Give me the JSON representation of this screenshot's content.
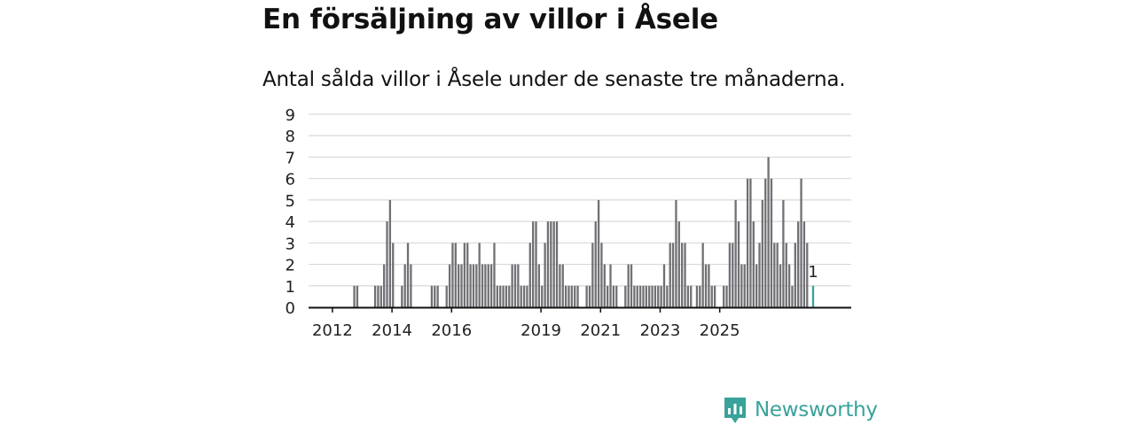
{
  "header": {
    "title": "En försäljning av villor i Åsele",
    "subtitle": "Antal sålda villor i Åsele under de senaste tre månaderna."
  },
  "brand": {
    "name": "Newsworthy"
  },
  "colors": {
    "bar": "#707075",
    "highlight": "#39a29a",
    "grid": "#d9d9d9",
    "axis": "#111111"
  },
  "chart_data": {
    "type": "bar",
    "title": "En försäljning av villor i Åsele",
    "subtitle": "Antal sålda villor i Åsele under de senaste tre månaderna.",
    "xlabel": "",
    "ylabel": "",
    "ylim": [
      0,
      9
    ],
    "yticks": [
      0,
      1,
      2,
      3,
      4,
      5,
      6,
      7,
      8,
      9
    ],
    "grid": true,
    "x_start": "2011-12",
    "x_tick_labels": [
      {
        "label": "2012",
        "month_index": 8
      },
      {
        "label": "2014",
        "month_index": 28
      },
      {
        "label": "2016",
        "month_index": 48
      },
      {
        "label": "2019",
        "month_index": 78
      },
      {
        "label": "2021",
        "month_index": 98
      },
      {
        "label": "2023",
        "month_index": 118
      },
      {
        "label": "2025",
        "month_index": 138
      }
    ],
    "values": [
      0,
      0,
      0,
      0,
      0,
      0,
      0,
      0,
      0,
      0,
      0,
      0,
      0,
      0,
      0,
      1,
      1,
      0,
      0,
      0,
      0,
      0,
      1,
      1,
      1,
      2,
      4,
      5,
      3,
      0,
      0,
      1,
      2,
      3,
      2,
      0,
      0,
      0,
      0,
      0,
      0,
      1,
      1,
      1,
      0,
      0,
      1,
      2,
      3,
      3,
      2,
      2,
      3,
      3,
      2,
      2,
      2,
      3,
      2,
      2,
      2,
      2,
      3,
      1,
      1,
      1,
      1,
      1,
      2,
      2,
      2,
      1,
      1,
      1,
      3,
      4,
      4,
      2,
      1,
      3,
      4,
      4,
      4,
      4,
      2,
      2,
      1,
      1,
      1,
      1,
      1,
      0,
      0,
      1,
      1,
      3,
      4,
      5,
      3,
      2,
      1,
      2,
      1,
      1,
      0,
      0,
      1,
      2,
      2,
      1,
      1,
      1,
      1,
      1,
      1,
      1,
      1,
      1,
      1,
      2,
      1,
      3,
      3,
      5,
      4,
      3,
      3,
      1,
      1,
      0,
      1,
      1,
      3,
      2,
      2,
      1,
      1,
      0,
      0,
      1,
      1,
      3,
      3,
      5,
      4,
      2,
      2,
      6,
      6,
      4,
      2,
      3,
      5,
      6,
      7,
      6,
      3,
      3,
      2,
      5,
      3,
      2,
      1,
      3,
      4,
      6,
      4,
      3,
      0,
      1
    ],
    "highlight_last": true,
    "data_label": "1"
  }
}
